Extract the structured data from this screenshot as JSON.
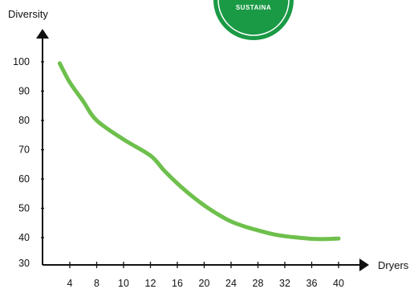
{
  "chart_data": {
    "type": "line",
    "xlabel": "Dryers",
    "ylabel": "Diversity",
    "x_ticks": [
      "4",
      "8",
      "10",
      "12",
      "16",
      "20",
      "24",
      "28",
      "32",
      "36",
      "40"
    ],
    "y_ticks": [
      "30",
      "40",
      "50",
      "60",
      "70",
      "80",
      "90",
      "100"
    ],
    "ylim": [
      30,
      100
    ],
    "grid": false,
    "series": [
      {
        "x": [
          2.5,
          4,
          6,
          8,
          10,
          12,
          14,
          16,
          18,
          20,
          22,
          24,
          26,
          28,
          30,
          32,
          34,
          36,
          38,
          40
        ],
        "values": [
          99.5,
          93,
          86.5,
          80,
          73.5,
          68,
          63,
          58.5,
          54.5,
          51,
          48,
          45.5,
          43.8,
          42.5,
          41.3,
          40.5,
          40,
          39.6,
          39.5,
          39.7
        ]
      }
    ],
    "line_color": "#6ec04c"
  },
  "badge": {
    "text": "SUSTAINA",
    "color": "#1a9a45"
  }
}
